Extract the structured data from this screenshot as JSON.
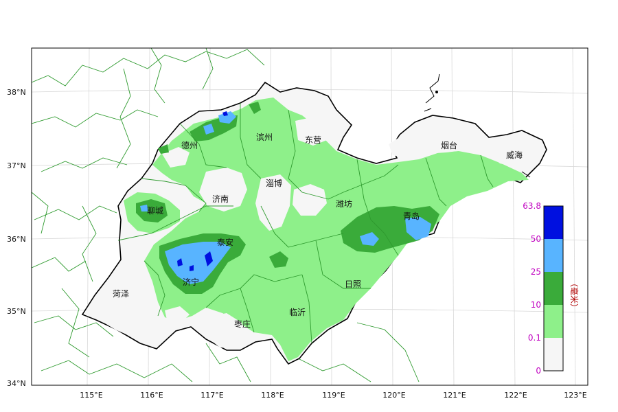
{
  "map": {
    "lat_labels": [
      "38°N",
      "37°N",
      "36°N",
      "35°N",
      "34°N"
    ],
    "lon_labels": [
      "115°E",
      "116°E",
      "117°E",
      "118°E",
      "119°E",
      "120°E",
      "121°E",
      "122°E",
      "123°E"
    ],
    "cities": [
      "德州",
      "滨州",
      "东营",
      "烟台",
      "威海",
      "聊城",
      "济南",
      "淄博",
      "潍坊",
      "青岛",
      "泰安",
      "济宁",
      "菏泽",
      "日照",
      "临沂",
      "枣庄"
    ]
  },
  "legend": {
    "levels": [
      "63.8",
      "50",
      "25",
      "10",
      "0.1",
      "0"
    ],
    "colors": [
      "#0010e0",
      "#58b4ff",
      "#3aab3a",
      "#8ef08a",
      "#f6f6f6"
    ],
    "unit": "（毫米）"
  }
}
